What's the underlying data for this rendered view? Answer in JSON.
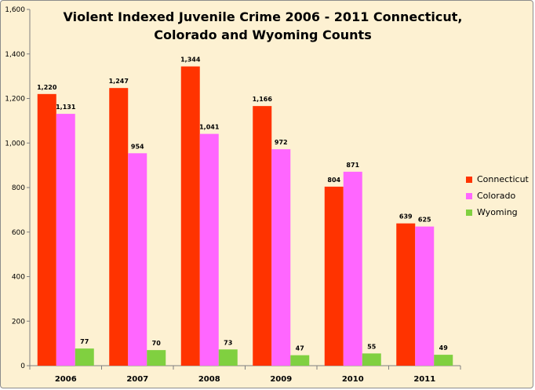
{
  "colors": {
    "Connecticut": "#ff3300",
    "Colorado": "#ff66ff",
    "Wyoming": "#80d040",
    "background": "#fdf1d2"
  },
  "chart_data": {
    "type": "bar",
    "title": "Violent Indexed Juvenile Crime 2006 - 2011 Connecticut, Colorado and Wyoming Counts",
    "xlabel": "",
    "ylabel": "",
    "categories": [
      "2006",
      "2007",
      "2008",
      "2009",
      "2010",
      "2011"
    ],
    "series": [
      {
        "name": "Connecticut",
        "values": [
          1220,
          1247,
          1344,
          1166,
          804,
          639
        ],
        "labels": [
          "1,220",
          "1,247",
          "1,344",
          "1,166",
          "804",
          "639"
        ]
      },
      {
        "name": "Colorado",
        "values": [
          1131,
          954,
          1041,
          972,
          871,
          625
        ],
        "labels": [
          "1,131",
          "954",
          "1,041",
          "972",
          "871",
          "625"
        ]
      },
      {
        "name": "Wyoming",
        "values": [
          77,
          70,
          73,
          47,
          55,
          49
        ],
        "labels": [
          "77",
          "70",
          "73",
          "47",
          "55",
          "49"
        ]
      }
    ],
    "ylim": [
      0,
      1600
    ],
    "yticks": [
      0,
      200,
      400,
      600,
      800,
      1000,
      1200,
      1400,
      1600
    ],
    "ytick_labels": [
      "0",
      "200",
      "400",
      "600",
      "800",
      "1,000",
      "1,200",
      "1,400",
      "1,600"
    ],
    "grid": false,
    "legend": "right"
  }
}
